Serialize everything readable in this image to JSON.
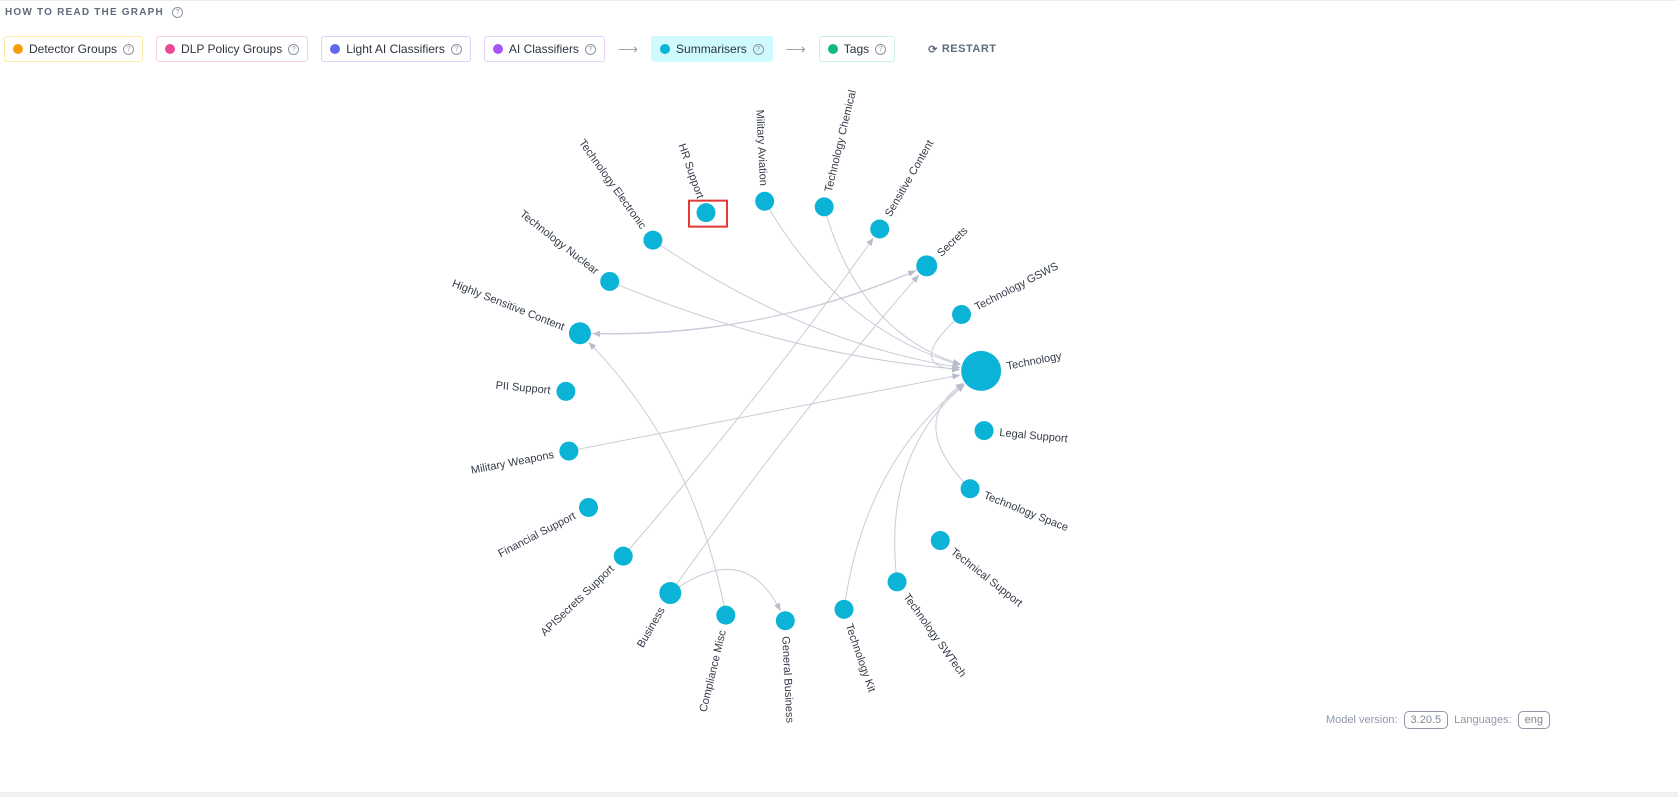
{
  "header": {
    "title": "HOW TO READ THE GRAPH",
    "help_icon": "question-circle-icon"
  },
  "legend": {
    "items": [
      {
        "label": "Detector Groups",
        "color": "#f59e0b",
        "border": "#fde9a8",
        "bg": "#ffffff"
      },
      {
        "label": "DLP Policy Groups",
        "color": "#ec4899",
        "border": "#fbd0e4",
        "bg": "#ffffff"
      },
      {
        "label": "Light AI Classifiers",
        "color": "#6366f1",
        "border": "#d3d5fa",
        "bg": "#ffffff"
      },
      {
        "label": "AI Classifiers",
        "color": "#a855f7",
        "border": "#e6d3fb",
        "bg": "#ffffff"
      },
      {
        "label": "Summarisers",
        "color": "#06b6d4",
        "border": "#cffafe",
        "bg": "#cffafe",
        "active": true
      },
      {
        "label": "Tags",
        "color": "#10b981",
        "border": "#c9f2e2",
        "bg": "#ffffff"
      }
    ],
    "arrow": "⟶",
    "restart_label": "RESTART"
  },
  "graph": {
    "node_color": "#0bb4d6",
    "edge_color": "#c9ccd8",
    "highlighted_node": "HR Support",
    "highlight_color": "#e53935",
    "nodes": [
      "Technology",
      "Legal Support",
      "Technology Space",
      "Technical Support",
      "Technology SWTech",
      "Technology Kit",
      "General Business",
      "Compliance Misc",
      "Business",
      "APISecrets Support",
      "Financial Support",
      "Military Weapons",
      "PII Support",
      "Highly Sensitive Content",
      "Technology Nuclear",
      "Technology Electronic",
      "HR Support",
      "Military Aviation",
      "Technology Chemical",
      "Sensitive Content",
      "Secrets",
      "Technology GSWS"
    ],
    "edges": [
      {
        "source": "Technology Electronic",
        "target": "Technology"
      },
      {
        "source": "Technology Nuclear",
        "target": "Technology"
      },
      {
        "source": "Military Aviation",
        "target": "Technology"
      },
      {
        "source": "Technology Chemical",
        "target": "Technology"
      },
      {
        "source": "Technology GSWS",
        "target": "Technology"
      },
      {
        "source": "Military Weapons",
        "target": "Technology"
      },
      {
        "source": "Technology Space",
        "target": "Technology"
      },
      {
        "source": "Technology SWTech",
        "target": "Technology"
      },
      {
        "source": "Technology Kit",
        "target": "Technology"
      },
      {
        "source": "Secrets",
        "target": "Highly Sensitive Content"
      },
      {
        "source": "Highly Sensitive Content",
        "target": "Secrets"
      },
      {
        "source": "Compliance Misc",
        "target": "Highly Sensitive Content"
      },
      {
        "source": "APISecrets Support",
        "target": "Sensitive Content"
      },
      {
        "source": "Business",
        "target": "Secrets"
      },
      {
        "source": "Business",
        "target": "General Business"
      }
    ]
  },
  "footer": {
    "model_version_label": "Model version:",
    "model_version": "3.20.5",
    "languages_label": "Languages:",
    "languages": "eng"
  }
}
